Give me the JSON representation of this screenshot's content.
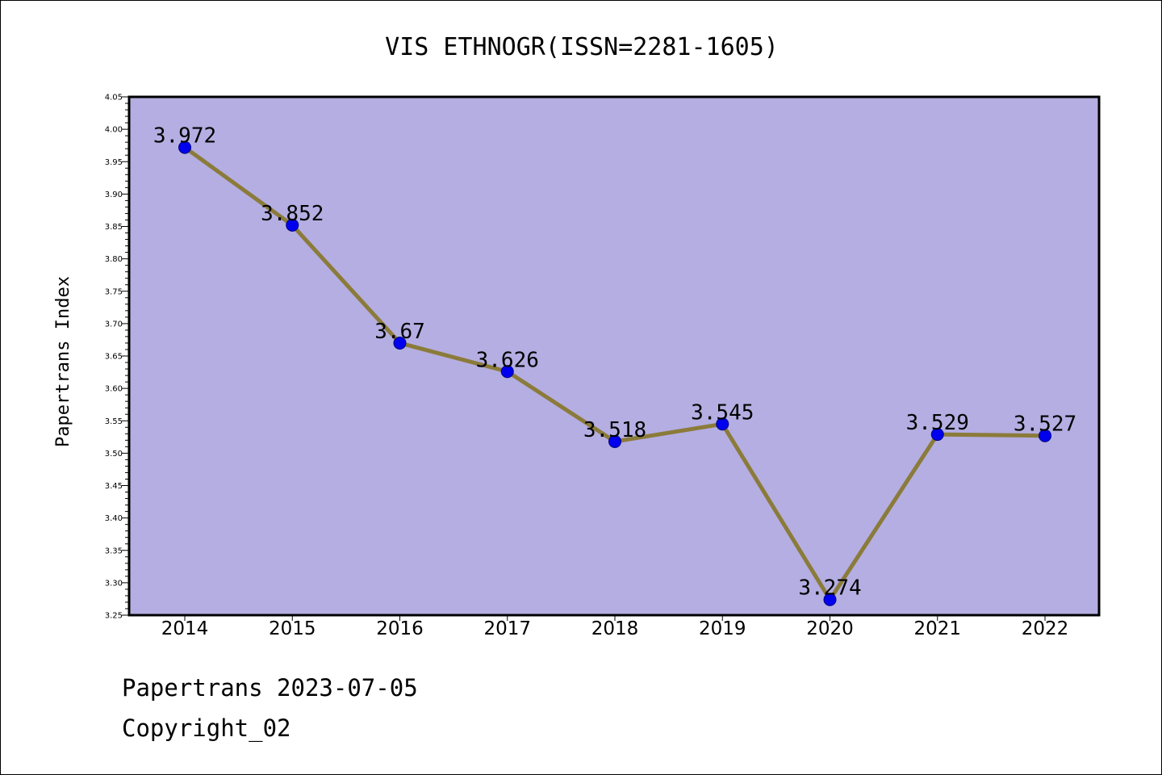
{
  "chart_data": {
    "type": "line",
    "title": "VIS ETHNOGR(ISSN=2281-1605)",
    "xlabel": "",
    "ylabel": "Papertrans Index",
    "categories": [
      "2014",
      "2015",
      "2016",
      "2017",
      "2018",
      "2019",
      "2020",
      "2021",
      "2022"
    ],
    "series": [
      {
        "values": [
          3.972,
          3.852,
          3.67,
          3.626,
          3.518,
          3.545,
          3.274,
          3.529,
          3.527
        ],
        "data_labels": [
          "3.972",
          "3.852",
          "3.67",
          "3.626",
          "3.518",
          "3.545",
          "3.274",
          "3.529",
          "3.527"
        ]
      }
    ],
    "ylim": [
      3.25,
      4.05
    ],
    "y_ticks": [
      "3.25",
      "3.30",
      "3.35",
      "3.40",
      "3.45",
      "3.50",
      "3.55",
      "3.60",
      "3.65",
      "3.70",
      "3.75",
      "3.80",
      "3.85",
      "3.90",
      "3.95",
      "4.00",
      "4.05"
    ],
    "grid": false,
    "legend": "none",
    "colors": {
      "plot_background": "#b4aee2",
      "line": "#8b7b3a",
      "marker": "#0000ee",
      "marker_edge": "#000080"
    }
  },
  "footer": {
    "line1": "Papertrans 2023-07-05",
    "line2": "Copyright_02"
  }
}
